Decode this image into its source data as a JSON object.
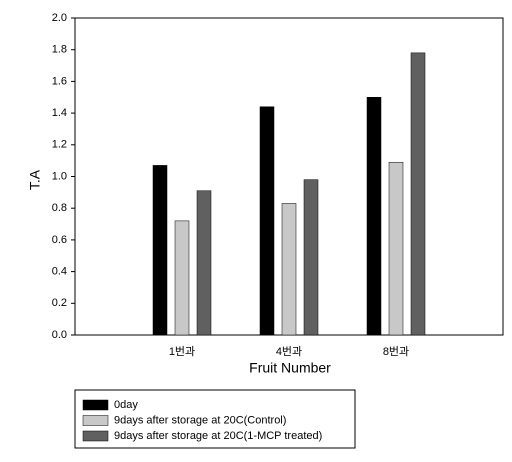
{
  "chart_data": {
    "type": "bar",
    "y_label": "T.A",
    "x_label": "Fruit Number",
    "categories": [
      "1번과",
      "4번과",
      "8번과"
    ],
    "series": [
      {
        "name": "0day",
        "color": "#000000",
        "values": [
          1.07,
          1.44,
          1.5
        ]
      },
      {
        "name": "9days after storage at 20C(Control)",
        "color": "#c8c8c8",
        "values": [
          0.72,
          0.83,
          1.09
        ]
      },
      {
        "name": "9days after storage at 20C(1-MCP treated)",
        "color": "#606060",
        "values": [
          0.91,
          0.98,
          1.78
        ]
      }
    ],
    "ylim": [
      0,
      2
    ],
    "yticks": [
      {
        "value": 0,
        "label": "0.0"
      },
      0.2,
      0.4,
      0.6,
      0.8,
      {
        "value": 1,
        "label": "1.0"
      },
      1.2,
      1.4,
      1.6,
      1.8,
      {
        "value": 2,
        "label": "2.0"
      }
    ],
    "legend": "bottom-left"
  }
}
